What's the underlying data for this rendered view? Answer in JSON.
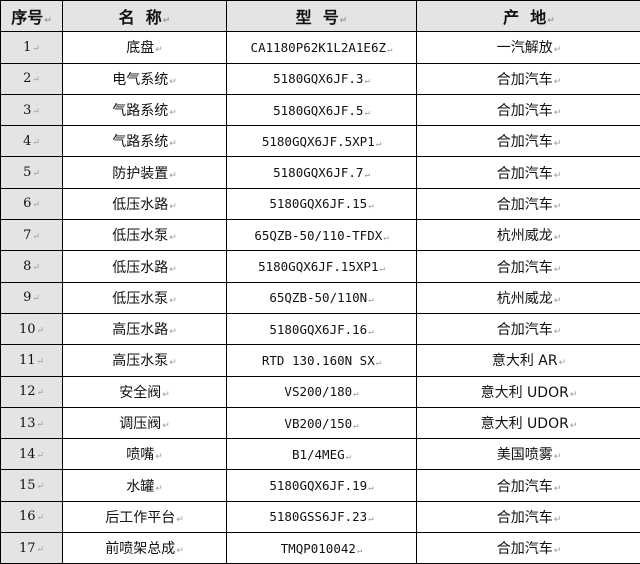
{
  "headers": [
    "序号",
    "名  称",
    "型  号",
    "产  地"
  ],
  "rows": [
    {
      "no": "1",
      "name": "底盘",
      "model": "CA1180P62K1L2A1E6Z",
      "origin": "一汽解放"
    },
    {
      "no": "2",
      "name": "电气系统",
      "model": "5180GQX6JF.3",
      "origin": "合加汽车"
    },
    {
      "no": "3",
      "name": "气路系统",
      "model": "5180GQX6JF.5",
      "origin": "合加汽车"
    },
    {
      "no": "4",
      "name": "气路系统",
      "model": "5180GQX6JF.5XP1",
      "origin": "合加汽车"
    },
    {
      "no": "5",
      "name": "防护装置",
      "model": "5180GQX6JF.7",
      "origin": "合加汽车"
    },
    {
      "no": "6",
      "name": "低压水路",
      "model": "5180GQX6JF.15",
      "origin": "合加汽车"
    },
    {
      "no": "7",
      "name": "低压水泵",
      "model": "65QZB-50/110-TFDX",
      "origin": "杭州威龙"
    },
    {
      "no": "8",
      "name": "低压水路",
      "model": "5180GQX6JF.15XP1",
      "origin": "合加汽车"
    },
    {
      "no": "9",
      "name": "低压水泵",
      "model": "65QZB-50/110N",
      "origin": "杭州威龙"
    },
    {
      "no": "10",
      "name": "高压水路",
      "model": "5180GQX6JF.16",
      "origin": "合加汽车"
    },
    {
      "no": "11",
      "name": "高压水泵",
      "model": "RTD 130.160N SX",
      "origin": "意大利 AR"
    },
    {
      "no": "12",
      "name": "安全阀",
      "model": "VS200/180",
      "origin": "意大利 UDOR"
    },
    {
      "no": "13",
      "name": "调压阀",
      "model": "VB200/150",
      "origin": "意大利 UDOR"
    },
    {
      "no": "14",
      "name": "喷嘴",
      "model": "B1/4MEG",
      "origin": "美国喷雾"
    },
    {
      "no": "15",
      "name": "水罐",
      "model": "5180GQX6JF.19",
      "origin": "合加汽车"
    },
    {
      "no": "16",
      "name": "后工作平台",
      "model": "5180GSS6JF.23",
      "origin": "合加汽车"
    },
    {
      "no": "17",
      "name": "前喷架总成",
      "model": "TMQP010042",
      "origin": "合加汽车"
    }
  ],
  "paragraph_mark": "↵"
}
